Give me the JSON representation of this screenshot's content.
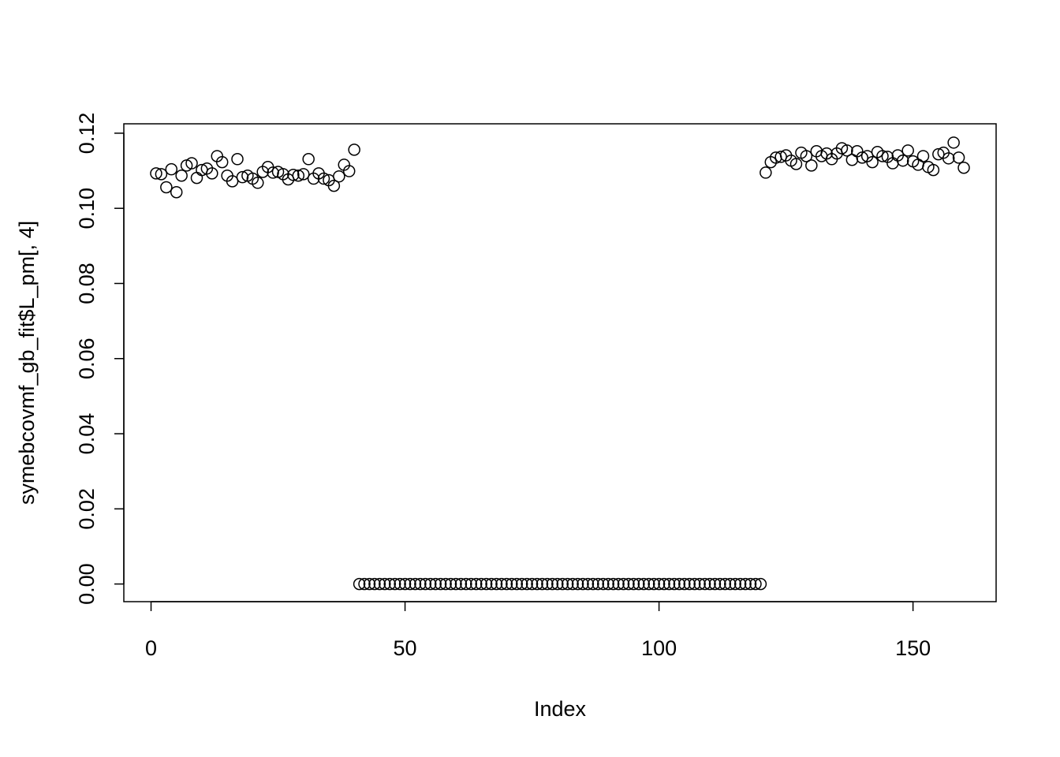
{
  "chart_data": {
    "type": "scatter",
    "x_label": "Index",
    "y_label": "symebcovmf_gb_fit$L_pm[, 4]",
    "x": [
      1,
      2,
      3,
      4,
      5,
      6,
      7,
      8,
      9,
      10,
      11,
      12,
      13,
      14,
      15,
      16,
      17,
      18,
      19,
      20,
      21,
      22,
      23,
      24,
      25,
      26,
      27,
      28,
      29,
      30,
      31,
      32,
      33,
      34,
      35,
      36,
      37,
      38,
      39,
      40,
      41,
      42,
      43,
      44,
      45,
      46,
      47,
      48,
      49,
      50,
      51,
      52,
      53,
      54,
      55,
      56,
      57,
      58,
      59,
      60,
      61,
      62,
      63,
      64,
      65,
      66,
      67,
      68,
      69,
      70,
      71,
      72,
      73,
      74,
      75,
      76,
      77,
      78,
      79,
      80,
      81,
      82,
      83,
      84,
      85,
      86,
      87,
      88,
      89,
      90,
      91,
      92,
      93,
      94,
      95,
      96,
      97,
      98,
      99,
      100,
      101,
      102,
      103,
      104,
      105,
      106,
      107,
      108,
      109,
      110,
      111,
      112,
      113,
      114,
      115,
      116,
      117,
      118,
      119,
      120,
      121,
      122,
      123,
      124,
      125,
      126,
      127,
      128,
      129,
      130,
      131,
      132,
      133,
      134,
      135,
      136,
      137,
      138,
      139,
      140,
      141,
      142,
      143,
      144,
      145,
      146,
      147,
      148,
      149,
      150,
      151,
      152,
      153,
      154,
      155,
      156,
      157,
      158,
      159,
      160
    ],
    "values": [
      0.1093,
      0.1091,
      0.1056,
      0.1104,
      0.1043,
      0.1087,
      0.1114,
      0.112,
      0.1081,
      0.1102,
      0.1106,
      0.1093,
      0.1139,
      0.1123,
      0.1087,
      0.1072,
      0.1131,
      0.1083,
      0.1087,
      0.1079,
      0.1068,
      0.1097,
      0.111,
      0.1095,
      0.1097,
      0.1091,
      0.1077,
      0.1089,
      0.1087,
      0.1091,
      0.1131,
      0.1079,
      0.1093,
      0.1079,
      0.1075,
      0.106,
      0.1085,
      0.1116,
      0.1099,
      0.1156,
      0,
      0,
      0,
      0,
      0,
      0,
      0,
      0,
      0,
      0,
      0,
      0,
      0,
      0,
      0,
      0,
      0,
      0,
      0,
      0,
      0,
      0,
      0,
      0,
      0,
      0,
      0,
      0,
      0,
      0,
      0,
      0,
      0,
      0,
      0,
      0,
      0,
      0,
      0,
      0,
      0,
      0,
      0,
      0,
      0,
      0,
      0,
      0,
      0,
      0,
      0,
      0,
      0,
      0,
      0,
      0,
      0,
      0,
      0,
      0,
      0,
      0,
      0,
      0,
      0,
      0,
      0,
      0,
      0,
      0,
      0,
      0,
      0,
      0,
      0,
      0,
      0,
      0,
      0,
      0,
      0.1095,
      0.1123,
      0.1135,
      0.1137,
      0.1141,
      0.1127,
      0.1118,
      0.1148,
      0.1139,
      0.1114,
      0.1152,
      0.1139,
      0.1146,
      0.1131,
      0.1146,
      0.116,
      0.1154,
      0.1129,
      0.1152,
      0.1135,
      0.1139,
      0.1123,
      0.115,
      0.1139,
      0.1137,
      0.112,
      0.1141,
      0.1127,
      0.1154,
      0.1125,
      0.1116,
      0.1139,
      0.111,
      0.1102,
      0.1144,
      0.1148,
      0.1133,
      0.1175,
      0.1135,
      0.1108
    ],
    "color": "#000000",
    "xlim": [
      -5.36,
      166.36
    ],
    "xticks": [
      0,
      50,
      100,
      150
    ],
    "ylim": [
      -0.0047,
      0.1225
    ],
    "yticks": [
      {
        "value": 0,
        "label": "0.00"
      },
      {
        "value": 0.02,
        "label": "0.02"
      },
      {
        "value": 0.04,
        "label": "0.04"
      },
      {
        "value": 0.06,
        "label": "0.06"
      },
      {
        "value": 0.08,
        "label": "0.08"
      },
      {
        "value": 0.1,
        "label": "0.10"
      },
      {
        "value": 0.12,
        "label": "0.12"
      }
    ]
  }
}
